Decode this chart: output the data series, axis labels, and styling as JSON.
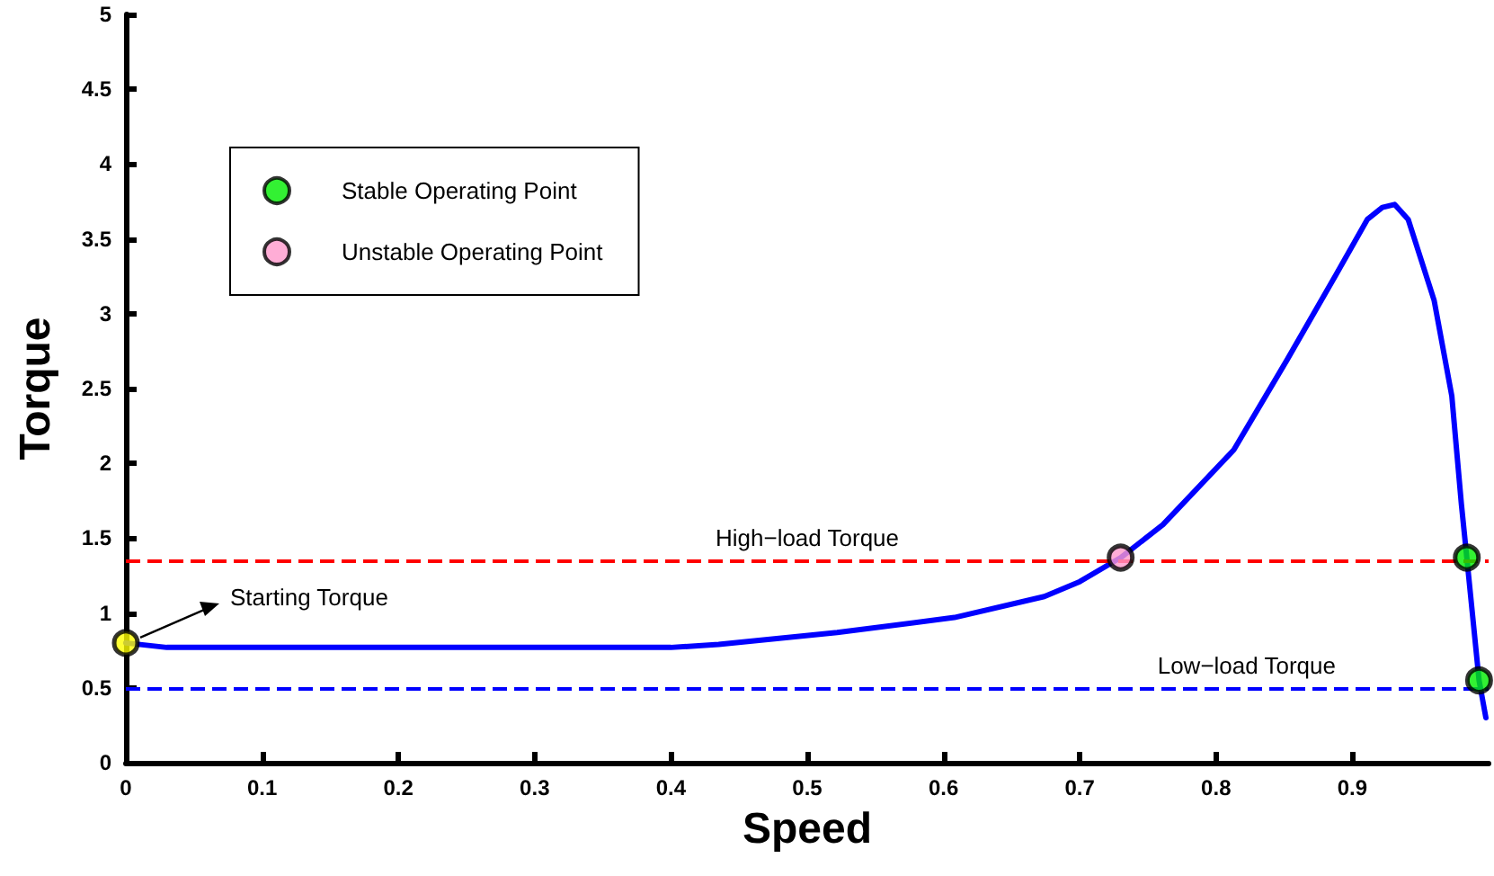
{
  "chart_data": {
    "type": "line",
    "xlabel": "Speed",
    "ylabel": "Torque",
    "xlim": [
      0,
      1
    ],
    "ylim": [
      0,
      5
    ],
    "xticks": [
      0,
      0.1,
      0.2,
      0.3,
      0.4,
      0.5,
      0.6,
      0.7,
      0.8,
      0.9
    ],
    "yticks": [
      0,
      0.5,
      1,
      1.5,
      2,
      2.5,
      3,
      3.5,
      4,
      4.5,
      5
    ],
    "grid": false,
    "legend": "top left",
    "line_style": "solid",
    "series": [
      {
        "color": "#0000ff",
        "marker": "none",
        "x": [
          0,
          0.03,
          0.05,
          0.2,
          0.4,
          0.435,
          0.522,
          0.608,
          0.674,
          0.7,
          0.73,
          0.761,
          0.813,
          0.852,
          0.888,
          0.911,
          0.922,
          0.931,
          0.941,
          0.96,
          0.973,
          0.98,
          0.984,
          0.993,
          0.998
        ],
        "values": [
          0.8,
          0.77,
          0.77,
          0.77,
          0.77,
          0.79,
          0.87,
          0.97,
          1.11,
          1.21,
          1.37,
          1.59,
          2.09,
          2.69,
          3.26,
          3.63,
          3.71,
          3.73,
          3.63,
          3.09,
          2.45,
          1.73,
          1.37,
          0.55,
          0.3
        ]
      },
      {
        "type": "scatter",
        "name": "Stable Operating Point",
        "color": "#00ee00",
        "marker": "circle",
        "x": [
          0.984,
          0.993
        ],
        "values": [
          1.37,
          0.55
        ]
      },
      {
        "type": "scatter",
        "name": "Unstable Operating Point",
        "color": "#ff99cc",
        "marker": "circle",
        "x": [
          0.73
        ],
        "values": [
          1.37
        ]
      },
      {
        "type": "scatter",
        "color": "#ffff00",
        "marker": "circle",
        "x": [
          0
        ],
        "values": [
          0.8
        ]
      }
    ],
    "ref_lines": [
      {
        "axis": "y",
        "value": 1.35,
        "label": "High−load Torque",
        "color": "#ff0000",
        "line_style": "dashed"
      },
      {
        "axis": "y",
        "value": 0.5,
        "label": "Low−load Torque",
        "color": "#0000ff",
        "line_style": "dashed"
      }
    ],
    "annotations": [
      {
        "text": "Starting Torque",
        "x": 0,
        "y": 0.8
      }
    ]
  }
}
